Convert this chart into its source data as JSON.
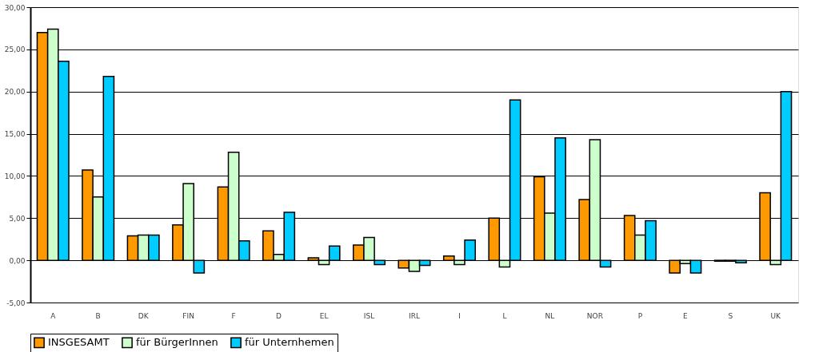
{
  "chart_data": {
    "type": "bar",
    "categories": [
      "A",
      "B",
      "DK",
      "FIN",
      "F",
      "D",
      "EL",
      "ISL",
      "IRL",
      "I",
      "L",
      "NL",
      "NOR",
      "P",
      "E",
      "S",
      "UK"
    ],
    "series": [
      {
        "name": "INSGESAMT",
        "color": "#ff9900",
        "values": [
          27.0,
          10.7,
          2.9,
          4.2,
          8.7,
          3.5,
          0.3,
          1.8,
          -0.9,
          0.5,
          5.0,
          9.9,
          7.2,
          5.3,
          -1.5,
          -0.1,
          8.0
        ]
      },
      {
        "name": "für BürgerInnen",
        "color": "#ccffcc",
        "values": [
          27.4,
          7.5,
          3.0,
          9.1,
          12.8,
          0.7,
          -0.5,
          2.7,
          -1.3,
          -0.5,
          -0.8,
          5.6,
          14.3,
          3.0,
          -0.4,
          -0.1,
          -0.5
        ]
      },
      {
        "name": "für Unternhemen",
        "color": "#00ccff",
        "values": [
          23.6,
          21.8,
          3.0,
          -1.5,
          2.3,
          5.7,
          1.7,
          -0.5,
          -0.6,
          2.4,
          19.0,
          14.5,
          -0.8,
          4.7,
          -1.5,
          -0.3,
          20.0
        ]
      }
    ],
    "ylim": [
      -5,
      30
    ],
    "yticks": [
      {
        "value": -5,
        "label": "-5,00"
      },
      {
        "value": 0,
        "label": "0,00"
      },
      {
        "value": 5,
        "label": "5,00"
      },
      {
        "value": 10,
        "label": "10,00"
      },
      {
        "value": 15,
        "label": "15,00"
      },
      {
        "value": 20,
        "label": "20,00"
      },
      {
        "value": 25,
        "label": "25,00"
      },
      {
        "value": 30,
        "label": "30,00"
      }
    ],
    "grid": "y",
    "legend": "bottom"
  }
}
